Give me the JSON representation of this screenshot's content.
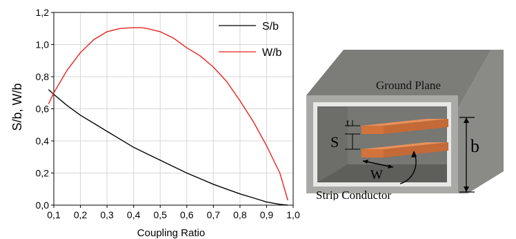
{
  "chart_data": {
    "type": "line",
    "xlabel": "Coupling Ratio",
    "ylabel": "S/b, W/b",
    "xlim": [
      0.1,
      1.0
    ],
    "ylim": [
      0.0,
      1.2
    ],
    "xticks": [
      "0,1",
      "0,2",
      "0,3",
      "0,4",
      "0,5",
      "0,6",
      "0,7",
      "0,8",
      "0,9",
      "1,0"
    ],
    "yticks": [
      "0,0",
      "0,2",
      "0,4",
      "0,6",
      "0,8",
      "1,0",
      "1,2"
    ],
    "grid": true,
    "legend_position": "top-right",
    "series": [
      {
        "name": "S/b",
        "color": "#000000",
        "x": [
          0.08,
          0.1,
          0.15,
          0.2,
          0.25,
          0.3,
          0.35,
          0.4,
          0.45,
          0.5,
          0.55,
          0.6,
          0.65,
          0.7,
          0.75,
          0.8,
          0.85,
          0.9,
          0.95,
          0.98
        ],
        "y": [
          0.72,
          0.69,
          0.62,
          0.56,
          0.51,
          0.46,
          0.41,
          0.36,
          0.32,
          0.28,
          0.24,
          0.2,
          0.165,
          0.13,
          0.1,
          0.07,
          0.045,
          0.02,
          0.005,
          0.0
        ]
      },
      {
        "name": "W/b",
        "color": "#e8201e",
        "x": [
          0.08,
          0.1,
          0.15,
          0.2,
          0.25,
          0.3,
          0.35,
          0.4,
          0.43,
          0.45,
          0.5,
          0.55,
          0.6,
          0.65,
          0.7,
          0.75,
          0.8,
          0.85,
          0.9,
          0.95,
          0.98
        ],
        "y": [
          0.63,
          0.7,
          0.84,
          0.95,
          1.03,
          1.08,
          1.1,
          1.105,
          1.105,
          1.1,
          1.08,
          1.04,
          0.98,
          0.93,
          0.86,
          0.77,
          0.65,
          0.52,
          0.37,
          0.2,
          0.03
        ]
      }
    ]
  },
  "diagram": {
    "ground_plane_label": "Ground Plane",
    "strip_conductor_label": "Strip Conductor",
    "t_label": "t",
    "s_label": "S",
    "w_label": "W",
    "b_label": "b"
  }
}
